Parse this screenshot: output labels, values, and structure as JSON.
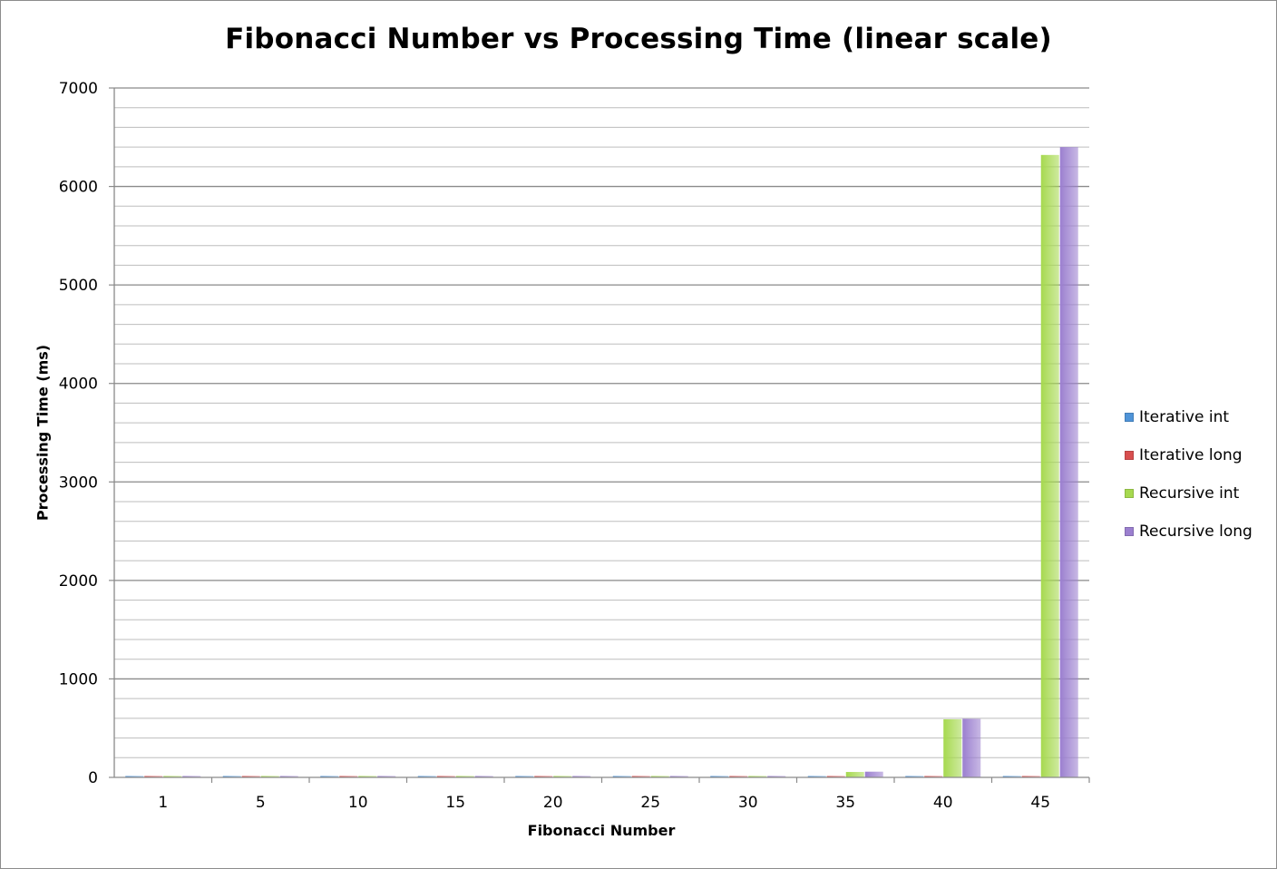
{
  "chart_data": {
    "type": "bar",
    "title": "Fibonacci Number vs Processing Time (linear scale)",
    "xlabel": "Fibonacci Number",
    "ylabel": "Processing Time (ms)",
    "categories": [
      "1",
      "5",
      "10",
      "15",
      "20",
      "25",
      "30",
      "35",
      "40",
      "45"
    ],
    "ylim": [
      0,
      7000
    ],
    "yticks": [
      0,
      1000,
      2000,
      3000,
      4000,
      5000,
      6000,
      7000
    ],
    "ytick_labels": [
      "0",
      "1000",
      "2000",
      "3000",
      "4000",
      "5000",
      "6000",
      "7000"
    ],
    "minor_grid_step": 200,
    "grid": true,
    "legend_position": "right",
    "series": [
      {
        "name": "Iterative int",
        "color": "#4f94d8",
        "values": [
          0,
          0,
          0,
          0,
          0,
          0,
          0,
          0,
          0,
          0
        ]
      },
      {
        "name": "Iterative long",
        "color": "#d84f4f",
        "values": [
          0,
          0,
          0,
          0,
          0,
          0,
          0,
          0,
          0,
          0
        ]
      },
      {
        "name": "Recursive int",
        "color": "#a6d94f",
        "values": [
          0,
          0,
          0,
          0,
          1,
          3,
          8,
          55,
          590,
          6320
        ]
      },
      {
        "name": "Recursive long",
        "color": "#9b7fcf",
        "values": [
          0,
          0,
          0,
          0,
          1,
          4,
          9,
          58,
          595,
          6400
        ]
      }
    ]
  }
}
